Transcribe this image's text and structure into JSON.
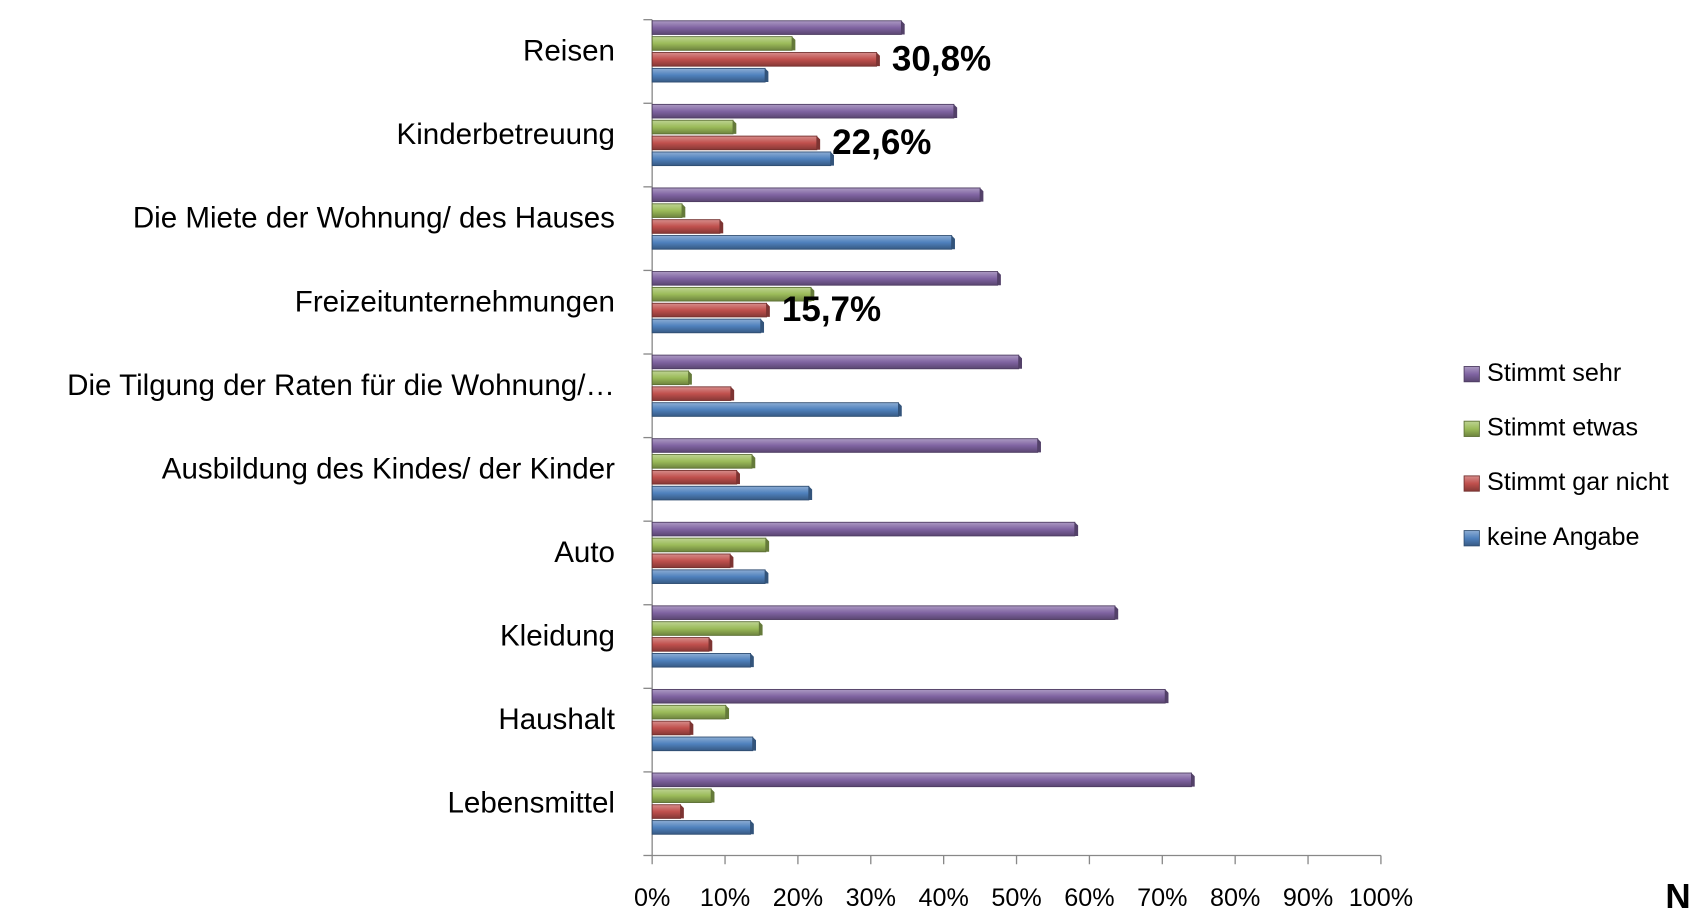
{
  "chart_data": {
    "type": "bar",
    "orientation": "horizontal",
    "categories": [
      "Reisen",
      "Kinderbetreuung",
      "Die Miete der Wohnung/ des Hauses",
      "Freizeitunternehmungen",
      "Die Tilgung der Raten für die Wohnung/…",
      "Ausbildung des Kindes/ der Kinder",
      "Auto",
      "Kleidung",
      "Haushalt",
      "Lebensmittel"
    ],
    "series": [
      {
        "name": "Stimmt sehr",
        "color": "#8064a2",
        "values": [
          34.2,
          41.4,
          45.0,
          47.4,
          50.3,
          52.9,
          58.0,
          63.5,
          70.4,
          74.0
        ]
      },
      {
        "name": "Stimmt etwas",
        "color": "#9bbb59",
        "values": [
          19.2,
          11.1,
          4.1,
          21.8,
          5.0,
          13.7,
          15.6,
          14.7,
          10.1,
          8.1
        ]
      },
      {
        "name": "Stimmt gar nicht",
        "color": "#c0504d",
        "values": [
          30.8,
          22.6,
          9.3,
          15.7,
          10.8,
          11.6,
          10.7,
          7.8,
          5.2,
          3.9
        ],
        "value_labels": [
          "30,8%",
          "22,6%",
          null,
          "15,7%",
          null,
          null,
          null,
          null,
          null,
          null
        ]
      },
      {
        "name": "keine Angabe",
        "color": "#4f81bd",
        "values": [
          15.5,
          24.5,
          41.1,
          14.9,
          33.8,
          21.5,
          15.5,
          13.5,
          13.8,
          13.5
        ]
      }
    ],
    "xlim": [
      0,
      100
    ],
    "xticks": [
      {
        "value": 0,
        "label": "0%"
      },
      {
        "value": 10,
        "label": "10%"
      },
      {
        "value": 20,
        "label": "20%"
      },
      {
        "value": 30,
        "label": "30%"
      },
      {
        "value": 40,
        "label": "40%"
      },
      {
        "value": 50,
        "label": "50%"
      },
      {
        "value": 60,
        "label": "60%"
      },
      {
        "value": 70,
        "label": "70%"
      },
      {
        "value": 80,
        "label": "80%"
      },
      {
        "value": 90,
        "label": "90%"
      },
      {
        "value": 100,
        "label": "100%"
      }
    ],
    "grid": false,
    "legend": "right",
    "annotations": [
      "N"
    ]
  }
}
